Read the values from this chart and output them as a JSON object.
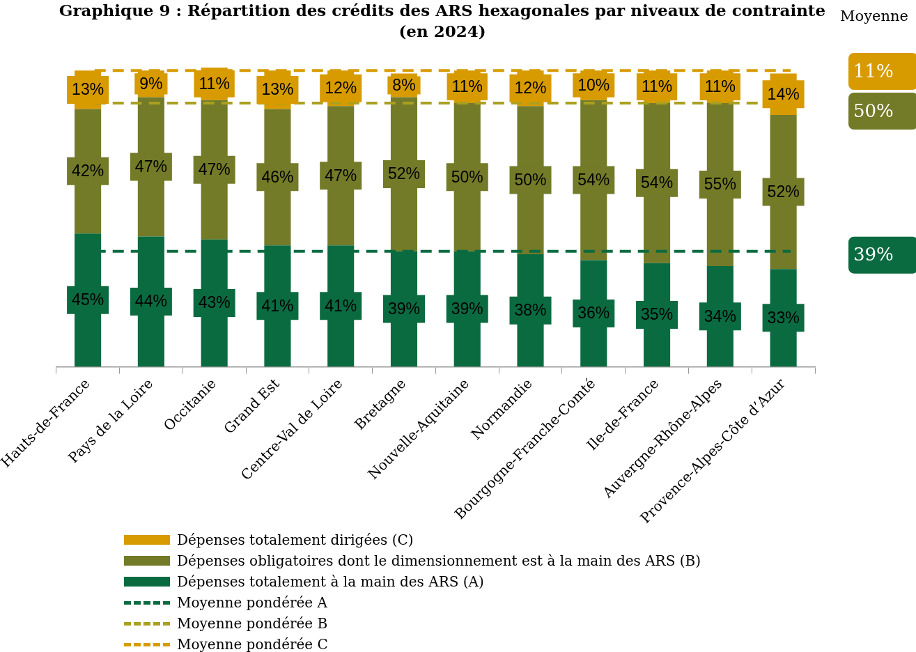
{
  "chart_data": {
    "type": "bar",
    "stacked": true,
    "title": "Graphique 9 : Répartition des crédits des ARS hexagonales par niveaux de contrainte (en 2024)",
    "categories": [
      "Hauts-de-France",
      "Pays de la Loire",
      "Occitanie",
      "Grand Est",
      "Centre-Val de Loire",
      "Bretagne",
      "Nouvelle-Aquitaine",
      "Normandie",
      "Bourgogne-Franche-Comté",
      "Ile-de-France",
      "Auvergne-Rhône-Alpes",
      "Provence-Alpes-Côte d’Azur"
    ],
    "series": [
      {
        "name": "Dépenses totalement à la main des ARS (A)",
        "color": "#0b6b40",
        "values": [
          45,
          44,
          43,
          41,
          41,
          39,
          39,
          38,
          36,
          35,
          34,
          33
        ],
        "value_labels": [
          "45%",
          "44%",
          "43%",
          "41%",
          "41%",
          "39%",
          "39%",
          "38%",
          "36%",
          "35%",
          "34%",
          "33%"
        ]
      },
      {
        "name": "Dépenses obligatoires dont le dimensionnement est à la main des ARS (B)",
        "color": "#737b28",
        "values": [
          42,
          47,
          47,
          46,
          47,
          52,
          50,
          50,
          54,
          54,
          55,
          52
        ],
        "value_labels": [
          "42%",
          "47%",
          "47%",
          "46%",
          "47%",
          "52%",
          "50%",
          "50%",
          "54%",
          "54%",
          "55%",
          "52%"
        ]
      },
      {
        "name": "Dépenses totalement dirigées (C)",
        "color": "#d79b00",
        "values": [
          13,
          9,
          11,
          13,
          12,
          8,
          11,
          12,
          10,
          11,
          11,
          14
        ],
        "value_labels": [
          "13%",
          "9%",
          "11%",
          "13%",
          "12%",
          "8%",
          "11%",
          "12%",
          "10%",
          "11%",
          "11%",
          "14%"
        ]
      }
    ],
    "ylim": [
      0,
      101
    ],
    "tick_labels": "x",
    "grid": false,
    "legend": "bottom",
    "ref_lines": [
      {
        "axis": "y",
        "value": 39,
        "label": "Moyenne pondérée A",
        "color": "#0b6b40",
        "line_style": "dashed"
      },
      {
        "axis": "y",
        "value": 89,
        "label": "Moyenne pondérée B",
        "color": "#a9a020",
        "line_style": "dashed"
      },
      {
        "axis": "y",
        "value": 100,
        "label": "Moyenne pondérée C",
        "color": "#d79b00",
        "line_style": "dashed"
      }
    ],
    "annotations": [
      "Moyenne",
      "11%",
      "50%",
      "39%"
    ]
  }
}
